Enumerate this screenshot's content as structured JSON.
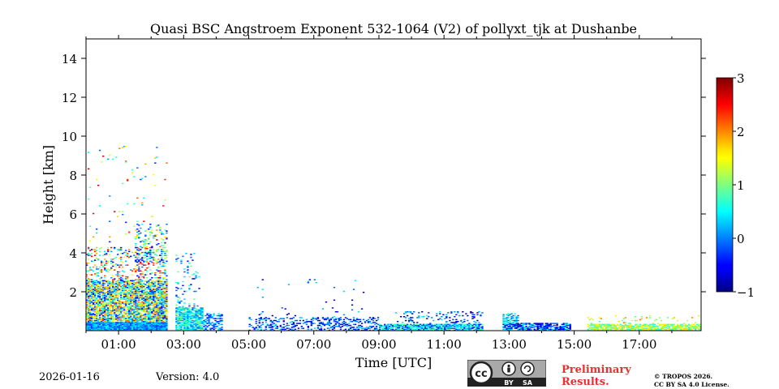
{
  "chart_data": {
    "type": "heatmap",
    "title": "Quasi BSC Angstroem Exponent 532-1064 (V2) of pollyxt_tjk at Dushanbe",
    "xlabel": "Time [UTC]",
    "ylabel": "Height [km]",
    "xlim_hours": [
      0,
      18.9
    ],
    "ylim_km": [
      0,
      15
    ],
    "x_ticks": [
      {
        "value": 1,
        "label": "01:00"
      },
      {
        "value": 3,
        "label": "03:00"
      },
      {
        "value": 5,
        "label": "05:00"
      },
      {
        "value": 7,
        "label": "07:00"
      },
      {
        "value": 9,
        "label": "09:00"
      },
      {
        "value": 11,
        "label": "11:00"
      },
      {
        "value": 13,
        "label": "13:00"
      },
      {
        "value": 15,
        "label": "15:00"
      },
      {
        "value": 17,
        "label": "17:00"
      }
    ],
    "y_ticks": [
      {
        "value": 2,
        "label": "2"
      },
      {
        "value": 4,
        "label": "4"
      },
      {
        "value": 6,
        "label": "6"
      },
      {
        "value": 8,
        "label": "8"
      },
      {
        "value": 10,
        "label": "10"
      },
      {
        "value": 12,
        "label": "12"
      },
      {
        "value": 14,
        "label": "14"
      }
    ],
    "colorbar": {
      "min": -1,
      "max": 3,
      "colormap": "jet",
      "ticks": [
        {
          "value": -1,
          "label": "−1"
        },
        {
          "value": 0,
          "label": "0"
        },
        {
          "value": 1,
          "label": "1"
        },
        {
          "value": 2,
          "label": "2"
        },
        {
          "value": 3,
          "label": "3"
        }
      ]
    },
    "regions": [
      {
        "t0": 0.0,
        "t1": 2.5,
        "h0": 0.0,
        "h1": 0.45,
        "vmin": -0.3,
        "vmax": 0.5,
        "density": 1.0
      },
      {
        "t0": 0.0,
        "t1": 2.5,
        "h0": 0.45,
        "h1": 2.6,
        "vmin": -0.6,
        "vmax": 2.2,
        "density": 0.75
      },
      {
        "t0": 0.0,
        "t1": 2.5,
        "h0": 2.6,
        "h1": 4.3,
        "vmin": -0.8,
        "vmax": 2.6,
        "density": 0.18
      },
      {
        "t0": 1.5,
        "t1": 2.5,
        "h0": 3.5,
        "h1": 5.5,
        "vmin": -0.8,
        "vmax": 1.6,
        "density": 0.2
      },
      {
        "t0": 0.0,
        "t1": 2.5,
        "h0": 4.3,
        "h1": 9.5,
        "vmin": -0.5,
        "vmax": 2.8,
        "density": 0.012
      },
      {
        "t0": 2.75,
        "t1": 3.6,
        "h0": 0.0,
        "h1": 1.2,
        "vmin": -0.1,
        "vmax": 1.0,
        "density": 0.8
      },
      {
        "t0": 2.75,
        "t1": 3.5,
        "h0": 1.2,
        "h1": 4.0,
        "vmin": -0.8,
        "vmax": 1.0,
        "density": 0.08
      },
      {
        "t0": 3.6,
        "t1": 4.2,
        "h0": 0.0,
        "h1": 0.9,
        "vmin": -0.6,
        "vmax": 0.6,
        "density": 0.45
      },
      {
        "t0": 5.0,
        "t1": 9.0,
        "h0": 0.0,
        "h1": 0.7,
        "vmin": -0.8,
        "vmax": 0.4,
        "density": 0.3
      },
      {
        "t0": 5.2,
        "t1": 8.6,
        "h0": 0.7,
        "h1": 2.7,
        "vmin": -1.0,
        "vmax": 0.5,
        "density": 0.015
      },
      {
        "t0": 9.0,
        "t1": 12.2,
        "h0": 0.0,
        "h1": 0.35,
        "vmin": -0.5,
        "vmax": 1.0,
        "density": 0.85
      },
      {
        "t0": 9.5,
        "t1": 12.2,
        "h0": 0.35,
        "h1": 1.0,
        "vmin": -1.0,
        "vmax": 0.5,
        "density": 0.15
      },
      {
        "t0": 12.8,
        "t1": 14.9,
        "h0": 0.0,
        "h1": 0.4,
        "vmin": -1.0,
        "vmax": 0.6,
        "density": 0.75
      },
      {
        "t0": 12.8,
        "t1": 13.3,
        "h0": 0.4,
        "h1": 0.9,
        "vmin": -0.3,
        "vmax": 0.8,
        "density": 0.5
      },
      {
        "t0": 15.4,
        "t1": 18.9,
        "h0": 0.0,
        "h1": 0.35,
        "vmin": 0.6,
        "vmax": 1.7,
        "density": 0.75
      },
      {
        "t0": 15.4,
        "t1": 18.9,
        "h0": 0.35,
        "h1": 0.8,
        "vmin": 0.8,
        "vmax": 2.0,
        "density": 0.07
      }
    ]
  },
  "footer": {
    "date": "2026-01-16",
    "version": "Version: 4.0",
    "preliminary_line1": "Preliminary",
    "preliminary_line2": "Results.",
    "copyright_line1": "© TROPOS 2026.",
    "copyright_line2": "CC BY SA 4.0 License.",
    "cc_text": "cc",
    "cc_by": "BY",
    "cc_sa": "SA"
  },
  "colors": {
    "preliminary": "#e83030",
    "badge_bg": "#a9a9a9",
    "badge_strip": "#222222"
  }
}
